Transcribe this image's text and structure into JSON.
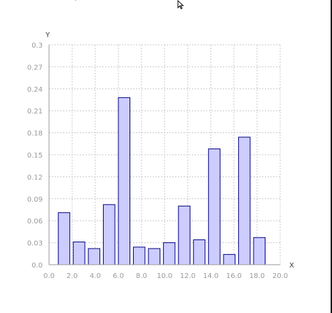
{
  "window": {
    "right_edge_color": "#1a1a1a"
  },
  "top_glyph": "′°",
  "cursor": {
    "icon": "arrow-cursor-icon"
  },
  "chart_data": {
    "type": "bar",
    "title": "",
    "xlabel": "X",
    "ylabel": "Y",
    "xlim": [
      0.0,
      20.0
    ],
    "ylim": [
      0.0,
      0.3
    ],
    "xticks": [
      "0.0",
      "2.0",
      "4.0",
      "6.0",
      "8.0",
      "10.0",
      "12.0",
      "14.0",
      "16.0",
      "18.0",
      "20.0"
    ],
    "yticks": [
      "0.0",
      "0.03",
      "0.06",
      "0.09",
      "0.12",
      "0.15",
      "0.18",
      "0.21",
      "0.24",
      "0.27",
      "0.3"
    ],
    "grid": true,
    "bar_width": 1.0,
    "x": [
      1.3,
      2.6,
      3.9,
      5.2,
      6.5,
      7.8,
      9.1,
      10.4,
      11.7,
      13.0,
      14.3,
      15.6,
      16.9,
      18.2
    ],
    "values": [
      0.071,
      0.031,
      0.022,
      0.082,
      0.228,
      0.024,
      0.022,
      0.03,
      0.08,
      0.034,
      0.158,
      0.014,
      0.174,
      0.037
    ],
    "colors": {
      "fill": "#ccccff",
      "stroke": "#000080",
      "grid": "#c8c8c8",
      "tick": "#9a9a9a"
    }
  }
}
